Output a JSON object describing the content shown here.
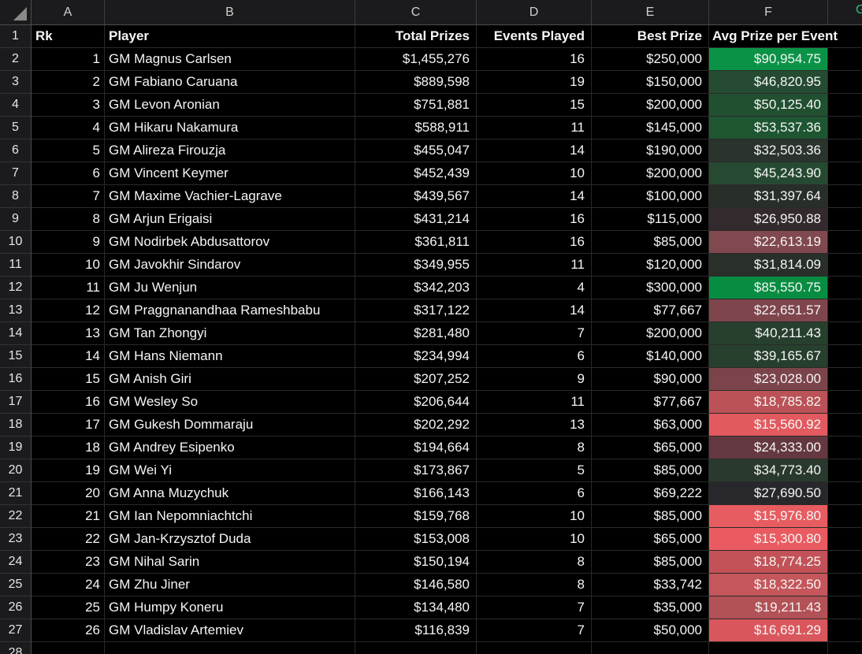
{
  "sheet": {
    "column_letters": [
      "A",
      "B",
      "C",
      "D",
      "E",
      "F"
    ],
    "partial_column_letter": "G",
    "headers": {
      "rk": "Rk",
      "player": "Player",
      "total": "Total Prizes",
      "events": "Events Played",
      "best": "Best Prize",
      "avg": "Avg Prize per Event"
    },
    "header_row_number": "1",
    "next_row_number": "28",
    "rows": [
      {
        "n": "2",
        "rk": "1",
        "player": "GM Magnus Carlsen",
        "total": "$1,455,276",
        "events": "16",
        "best": "$250,000",
        "avg": "$90,954.75",
        "avg_color": "#0a9346"
      },
      {
        "n": "3",
        "rk": "2",
        "player": "GM Fabiano Caruana",
        "total": "$889,598",
        "events": "19",
        "best": "$150,000",
        "avg": "$46,820.95",
        "avg_color": "#254b33"
      },
      {
        "n": "4",
        "rk": "3",
        "player": "GM Levon Aronian",
        "total": "$751,881",
        "events": "15",
        "best": "$200,000",
        "avg": "$50,125.40",
        "avg_color": "#215031"
      },
      {
        "n": "5",
        "rk": "4",
        "player": "GM Hikaru Nakamura",
        "total": "$588,911",
        "events": "11",
        "best": "$145,000",
        "avg": "$53,537.36",
        "avg_color": "#1e5632"
      },
      {
        "n": "6",
        "rk": "5",
        "player": "GM Alireza Firouzja",
        "total": "$455,047",
        "events": "14",
        "best": "$190,000",
        "avg": "$32,503.36",
        "avg_color": "#2b332d"
      },
      {
        "n": "7",
        "rk": "6",
        "player": "GM Vincent Keymer",
        "total": "$452,439",
        "events": "10",
        "best": "$200,000",
        "avg": "$45,243.90",
        "avg_color": "#264a31"
      },
      {
        "n": "8",
        "rk": "7",
        "player": "GM Maxime Vachier-Lagrave",
        "total": "$439,567",
        "events": "14",
        "best": "$100,000",
        "avg": "$31,397.64",
        "avg_color": "#282f29"
      },
      {
        "n": "9",
        "rk": "8",
        "player": "GM Arjun Erigaisi",
        "total": "$431,214",
        "events": "16",
        "best": "$115,000",
        "avg": "$26,950.88",
        "avg_color": "#322a2d"
      },
      {
        "n": "10",
        "rk": "9",
        "player": "GM Nodirbek Abdusattorov",
        "total": "$361,811",
        "events": "16",
        "best": "$85,000",
        "avg": "$22,613.19",
        "avg_color": "#80494f"
      },
      {
        "n": "11",
        "rk": "10",
        "player": "GM Javokhir Sindarov",
        "total": "$349,955",
        "events": "11",
        "best": "$120,000",
        "avg": "$31,814.09",
        "avg_color": "#283029"
      },
      {
        "n": "12",
        "rk": "11",
        "player": "GM Ju Wenjun",
        "total": "$342,203",
        "events": "4",
        "best": "$300,000",
        "avg": "$85,550.75",
        "avg_color": "#078d41"
      },
      {
        "n": "13",
        "rk": "12",
        "player": "GM Praggnanandhaa Rameshbabu",
        "total": "$317,122",
        "events": "14",
        "best": "$77,667",
        "avg": "$22,651.57",
        "avg_color": "#7e454c"
      },
      {
        "n": "14",
        "rk": "13",
        "player": "GM Tan Zhongyi",
        "total": "$281,480",
        "events": "7",
        "best": "$200,000",
        "avg": "$40,211.43",
        "avg_color": "#27402e"
      },
      {
        "n": "15",
        "rk": "14",
        "player": "GM Hans Niemann",
        "total": "$234,994",
        "events": "6",
        "best": "$140,000",
        "avg": "$39,165.67",
        "avg_color": "#273f2d"
      },
      {
        "n": "16",
        "rk": "15",
        "player": "GM Anish Giri",
        "total": "$207,252",
        "events": "9",
        "best": "$90,000",
        "avg": "$23,028.00",
        "avg_color": "#7a444a"
      },
      {
        "n": "17",
        "rk": "16",
        "player": "GM Wesley So",
        "total": "$206,644",
        "events": "11",
        "best": "$77,667",
        "avg": "$18,785.82",
        "avg_color": "#bb5257"
      },
      {
        "n": "18",
        "rk": "17",
        "player": "GM Gukesh Dommaraju",
        "total": "$202,292",
        "events": "13",
        "best": "$63,000",
        "avg": "$15,560.92",
        "avg_color": "#e25a5f"
      },
      {
        "n": "19",
        "rk": "18",
        "player": "GM Andrey Esipenko",
        "total": "$194,664",
        "events": "8",
        "best": "$65,000",
        "avg": "$24,333.00",
        "avg_color": "#643840"
      },
      {
        "n": "20",
        "rk": "19",
        "player": "GM Wei Yi",
        "total": "$173,867",
        "events": "5",
        "best": "$85,000",
        "avg": "$34,773.40",
        "avg_color": "#2a392e"
      },
      {
        "n": "21",
        "rk": "20",
        "player": "GM Anna Muzychuk",
        "total": "$166,143",
        "events": "6",
        "best": "$69,222",
        "avg": "$27,690.50",
        "avg_color": "#28282c"
      },
      {
        "n": "22",
        "rk": "21",
        "player": "GM Ian Nepomniachtchi",
        "total": "$159,768",
        "events": "10",
        "best": "$85,000",
        "avg": "$15,976.80",
        "avg_color": "#e75c60"
      },
      {
        "n": "23",
        "rk": "22",
        "player": "GM Jan-Krzysztof Duda",
        "total": "$153,008",
        "events": "10",
        "best": "$65,000",
        "avg": "$15,300.80",
        "avg_color": "#e95b60"
      },
      {
        "n": "24",
        "rk": "23",
        "player": "GM Nihal Sarin",
        "total": "$150,194",
        "events": "8",
        "best": "$85,000",
        "avg": "$18,774.25",
        "avg_color": "#c25257"
      },
      {
        "n": "25",
        "rk": "24",
        "player": "GM Zhu Jiner",
        "total": "$146,580",
        "events": "8",
        "best": "$33,742",
        "avg": "$18,322.50",
        "avg_color": "#c5565b"
      },
      {
        "n": "26",
        "rk": "25",
        "player": "GM Humpy Koneru",
        "total": "$134,480",
        "events": "7",
        "best": "$35,000",
        "avg": "$19,211.43",
        "avg_color": "#b25156"
      },
      {
        "n": "27",
        "rk": "26",
        "player": "GM Vladislav Artemiev",
        "total": "$116,839",
        "events": "7",
        "best": "$50,000",
        "avg": "$16,691.29",
        "avg_color": "#d9575c"
      }
    ],
    "colors": {
      "background": "#000000",
      "header_background": "#1b1b1d",
      "header_text": "#cfcfcf",
      "gridline": "#2a2a2a",
      "cell_text": "#f5f5f5",
      "max_green": "#0a9346",
      "min_red": "#e95b60",
      "partial_g_letter": "#2fb886",
      "select_all_triangle": "#8a8a8a"
    }
  }
}
